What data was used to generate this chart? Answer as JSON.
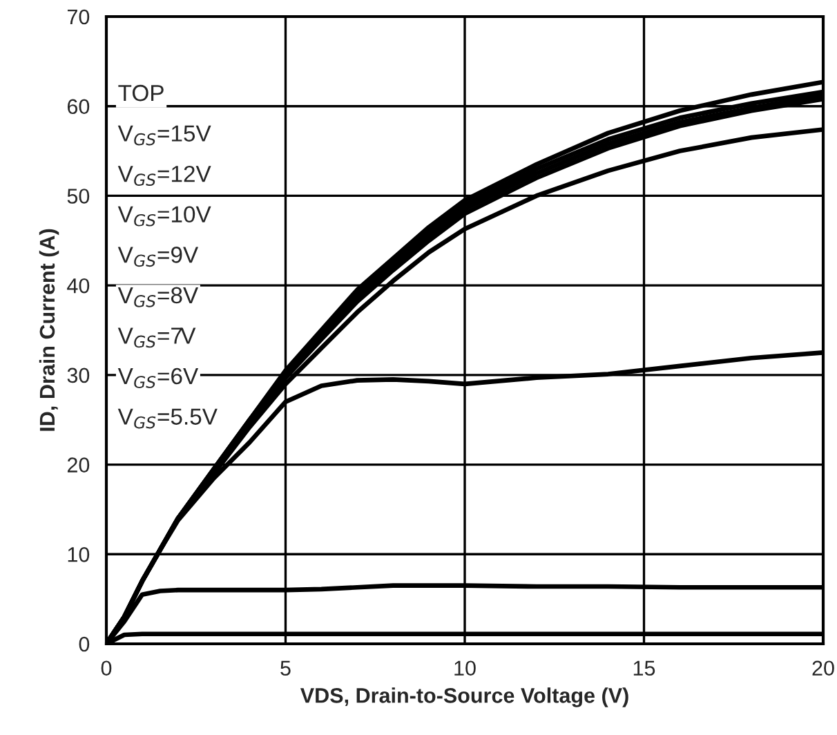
{
  "chart_data": {
    "type": "line",
    "xlabel": "VDS, Drain-to-Source Voltage (V)",
    "ylabel": "ID, Drain Current (A)",
    "x": [
      0,
      0.5,
      1,
      1.5,
      2,
      3,
      4,
      5,
      6,
      7,
      8,
      9,
      10,
      12,
      14,
      16,
      18,
      20
    ],
    "series": [
      {
        "color": "#000000",
        "values": [
          0,
          3,
          7,
          10.5,
          14,
          19.5,
          25,
          30.5,
          35,
          39.5,
          43,
          46.5,
          49.5,
          53.5,
          57,
          59.5,
          61.3,
          62.7
        ]
      },
      {
        "color": "#000000",
        "values": [
          0,
          3,
          7,
          10.5,
          14,
          19.5,
          25,
          30.3,
          34.8,
          39,
          42.5,
          46,
          49,
          53,
          56.3,
          58.7,
          60.3,
          61.6
        ]
      },
      {
        "color": "#000000",
        "values": [
          0,
          3,
          7,
          10.5,
          14,
          19.5,
          25,
          30,
          34.5,
          38.7,
          42.2,
          45.5,
          48.5,
          52.5,
          55.8,
          58.2,
          59.8,
          61.2
        ]
      },
      {
        "color": "#000000",
        "values": [
          0,
          3,
          7,
          10.5,
          14,
          19.3,
          24.7,
          29.7,
          34,
          38.2,
          41.7,
          45,
          48,
          52,
          55.3,
          57.8,
          59.5,
          60.8
        ]
      },
      {
        "color": "#000000",
        "values": [
          0,
          3,
          7,
          10.5,
          14,
          19,
          24.2,
          29,
          33,
          37,
          40.5,
          43.7,
          46.3,
          50,
          52.8,
          55,
          56.5,
          57.4
        ]
      },
      {
        "color": "#000000",
        "values": [
          0,
          3,
          7,
          10.5,
          13.8,
          18.5,
          22.5,
          27,
          28.8,
          29.4,
          29.5,
          29.3,
          29,
          29.7,
          30.1,
          31,
          31.9,
          32.5
        ]
      },
      {
        "color": "#000000",
        "values": [
          0,
          2.5,
          5.5,
          5.9,
          6,
          6,
          6,
          6,
          6.1,
          6.3,
          6.5,
          6.5,
          6.5,
          6.4,
          6.4,
          6.3,
          6.3,
          6.3
        ]
      },
      {
        "color": "#000000",
        "values": [
          0,
          1,
          1.1,
          1.1,
          1.1,
          1.1,
          1.1,
          1.1,
          1.1,
          1.1,
          1.1,
          1.1,
          1.1,
          1.1,
          1.1,
          1.1,
          1.1,
          1.1
        ]
      }
    ],
    "annotations": [
      "TOP",
      "V$_{GS}$=15V",
      "V$_{GS}$=12V",
      "V$_{GS}$=10V",
      "V$_{GS}$=9V",
      "V$_{GS}$=8V",
      "V$_{GS}$=7V",
      "V$_{GS}$=6V",
      "V$_{GS}$=5.5V"
    ],
    "xlim": [
      0,
      20
    ],
    "xticks": [
      0,
      5,
      10,
      15,
      20
    ],
    "ylim": [
      0,
      70
    ],
    "yticks": [
      0,
      10,
      20,
      30,
      40,
      50,
      60,
      70
    ],
    "grid": true,
    "legend": false,
    "marker": "none",
    "line_style": "solid"
  }
}
